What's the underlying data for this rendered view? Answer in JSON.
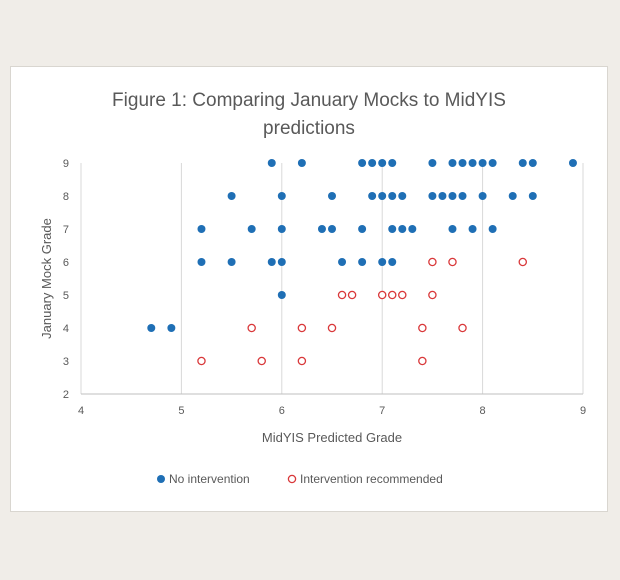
{
  "chart_data": {
    "type": "scatter",
    "title_line1": "Figure 1: Comparing January Mocks to MidYIS",
    "title_line2": "predictions",
    "xlabel": "MidYIS Predicted Grade",
    "ylabel": "January Mock Grade",
    "xlim": [
      4,
      9
    ],
    "ylim": [
      2,
      9
    ],
    "x_ticks": [
      "4",
      "5",
      "6",
      "7",
      "8",
      "9"
    ],
    "y_ticks": [
      "2",
      "3",
      "4",
      "5",
      "6",
      "7",
      "8",
      "9"
    ],
    "grid": "vertical",
    "legend_position": "bottom",
    "series": [
      {
        "name": "No intervention",
        "color": "#1f6fb5",
        "marker": "filled-circle",
        "points": [
          [
            5.9,
            9
          ],
          [
            6.2,
            9
          ],
          [
            6.8,
            9
          ],
          [
            6.9,
            9
          ],
          [
            7.0,
            9
          ],
          [
            7.1,
            9
          ],
          [
            7.5,
            9
          ],
          [
            7.7,
            9
          ],
          [
            7.8,
            9
          ],
          [
            7.9,
            9
          ],
          [
            8.0,
            9
          ],
          [
            8.1,
            9
          ],
          [
            8.4,
            9
          ],
          [
            8.5,
            9
          ],
          [
            8.9,
            9
          ],
          [
            5.5,
            8
          ],
          [
            6.0,
            8
          ],
          [
            6.5,
            8
          ],
          [
            6.9,
            8
          ],
          [
            7.0,
            8
          ],
          [
            7.1,
            8
          ],
          [
            7.2,
            8
          ],
          [
            7.5,
            8
          ],
          [
            7.6,
            8
          ],
          [
            7.7,
            8
          ],
          [
            7.8,
            8
          ],
          [
            8.0,
            8
          ],
          [
            8.3,
            8
          ],
          [
            8.5,
            8
          ],
          [
            5.2,
            7
          ],
          [
            5.7,
            7
          ],
          [
            6.0,
            7
          ],
          [
            6.4,
            7
          ],
          [
            6.5,
            7
          ],
          [
            6.8,
            7
          ],
          [
            7.1,
            7
          ],
          [
            7.2,
            7
          ],
          [
            7.3,
            7
          ],
          [
            7.7,
            7
          ],
          [
            7.9,
            7
          ],
          [
            8.1,
            7
          ],
          [
            5.2,
            6
          ],
          [
            5.5,
            6
          ],
          [
            5.9,
            6
          ],
          [
            6.0,
            6
          ],
          [
            6.6,
            6
          ],
          [
            6.8,
            6
          ],
          [
            7.0,
            6
          ],
          [
            7.1,
            6
          ],
          [
            6.0,
            5
          ],
          [
            4.7,
            4
          ],
          [
            4.9,
            4
          ]
        ]
      },
      {
        "name": "Intervention recommended",
        "color": "#d9383a",
        "marker": "open-circle",
        "points": [
          [
            7.5,
            6
          ],
          [
            7.7,
            6
          ],
          [
            8.4,
            6
          ],
          [
            6.6,
            5
          ],
          [
            6.7,
            5
          ],
          [
            7.0,
            5
          ],
          [
            7.1,
            5
          ],
          [
            7.2,
            5
          ],
          [
            7.5,
            5
          ],
          [
            5.7,
            4
          ],
          [
            6.2,
            4
          ],
          [
            6.5,
            4
          ],
          [
            7.4,
            4
          ],
          [
            7.8,
            4
          ],
          [
            5.2,
            3
          ],
          [
            5.8,
            3
          ],
          [
            6.2,
            3
          ],
          [
            7.4,
            3
          ]
        ]
      }
    ]
  }
}
